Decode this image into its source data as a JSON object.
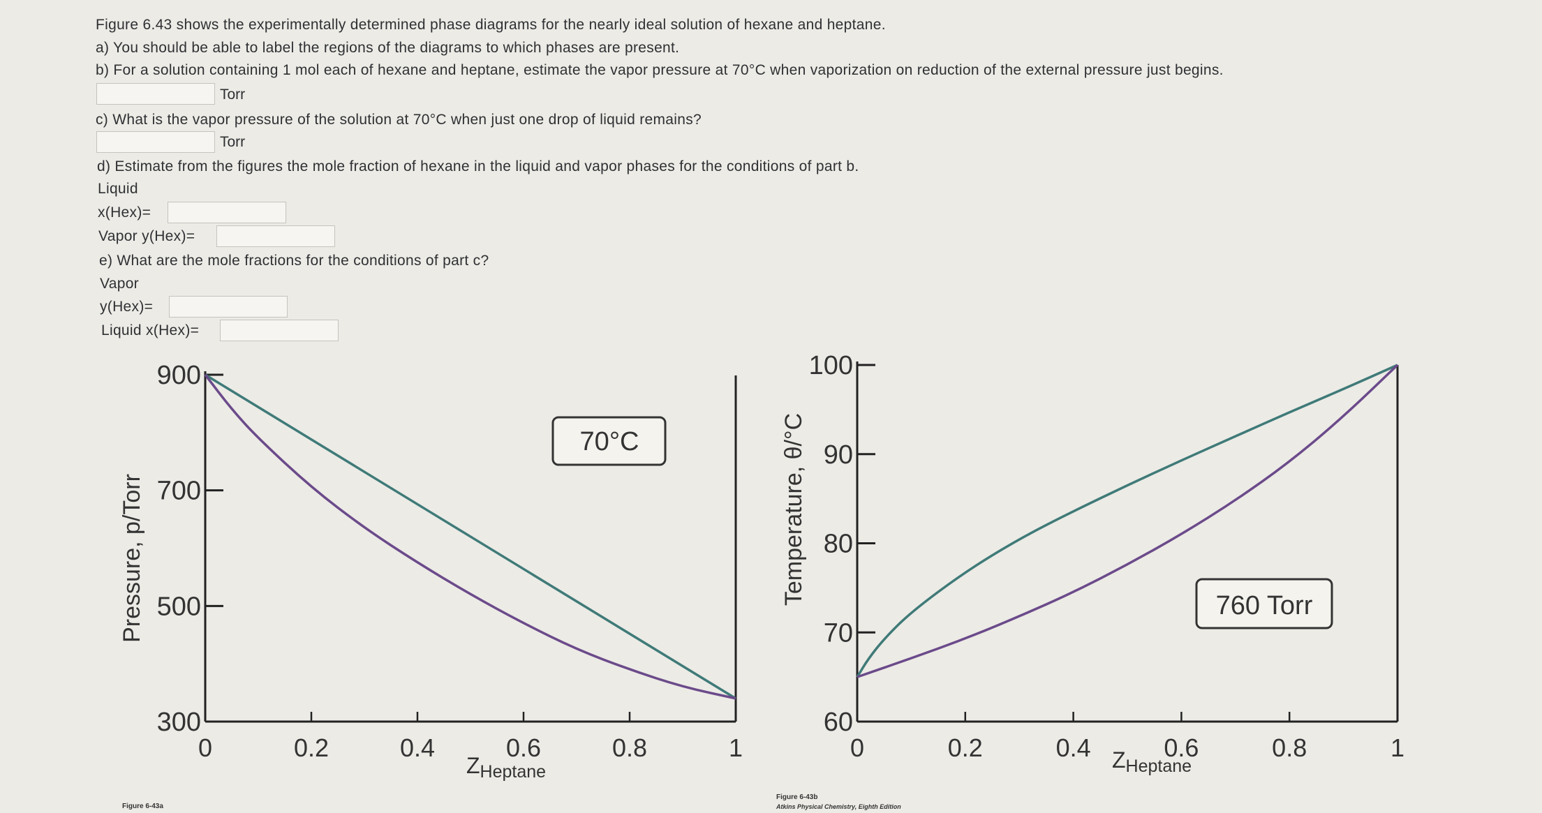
{
  "question": {
    "intro": "Figure 6.43 shows the experimentally determined phase diagrams for the nearly ideal solution of hexane and heptane.",
    "a": "a) You should be able to label the regions of the diagrams to which phases are present.",
    "b": "b) For a solution containing 1 mol each of hexane and heptane, estimate the vapor pressure at 70°C when vaporization on reduction of the external pressure just begins.",
    "b_unit": "Torr",
    "c": "c) What is the vapor pressure of the solution at 70°C when just one drop of liquid remains?",
    "c_unit": "Torr",
    "d": "d) Estimate from the figures the mole fraction of hexane in the liquid and vapor phases for the conditions of part b.",
    "d_liquid": "Liquid",
    "d_xhex": "x(Hex)=",
    "d_vapor": "Vapor y(Hex)=",
    "e": "e) What are the mole fractions for the conditions of part c?",
    "e_vapor": "Vapor",
    "e_yhex": "y(Hex)=",
    "e_liquid": "Liquid x(Hex)=",
    "inputs": {
      "b": "",
      "c": "",
      "d_x": "",
      "d_y": "",
      "e_y": "",
      "e_x": ""
    }
  },
  "chart_data": [
    {
      "type": "line",
      "ylabel": "Pressure, p/Torr",
      "xlabel": "Z",
      "xlabel_sub": "Heptane",
      "annotation": "70°C",
      "caption": "Figure 6-43a",
      "xlim": [
        0,
        1
      ],
      "ylim": [
        300,
        900
      ],
      "x_ticks": [
        "0",
        "0.2",
        "0.4",
        "0.6",
        "0.8",
        "1"
      ],
      "y_ticks": [
        "300",
        "500",
        "700",
        "900"
      ],
      "series": [
        {
          "color": "#3f7a78",
          "x": [
            0,
            1
          ],
          "y": [
            900,
            340
          ]
        },
        {
          "color": "#6b4a8a",
          "x": [
            0,
            0.05,
            0.1,
            0.2,
            0.3,
            0.4,
            0.5,
            0.6,
            0.7,
            0.8,
            0.9,
            1.0
          ],
          "y": [
            900,
            840,
            790,
            705,
            635,
            575,
            520,
            470,
            425,
            390,
            360,
            340
          ]
        }
      ]
    },
    {
      "type": "line",
      "ylabel": "Temperature, θ/°C",
      "xlabel": "Z",
      "xlabel_sub": "Heptane",
      "annotation": "760 Torr",
      "caption": "Figure 6-43b",
      "caption2": "Atkins Physical Chemistry, Eighth Edition",
      "xlim": [
        0,
        1
      ],
      "ylim": [
        60,
        100
      ],
      "x_ticks": [
        "0",
        "0.2",
        "0.4",
        "0.6",
        "0.8",
        "1"
      ],
      "y_ticks": [
        "60",
        "70",
        "80",
        "90",
        "100"
      ],
      "series": [
        {
          "color": "#3f7a78",
          "x": [
            0,
            0.02,
            0.05,
            0.1,
            0.2,
            0.3,
            0.4,
            0.5,
            0.6,
            0.7,
            0.8,
            0.9,
            1.0
          ],
          "y": [
            65,
            67,
            69.3,
            72.3,
            76.8,
            80.5,
            83.6,
            86.5,
            89.3,
            92,
            94.7,
            97.3,
            100
          ]
        },
        {
          "color": "#6b4a8a",
          "x": [
            0,
            0.1,
            0.2,
            0.3,
            0.4,
            0.5,
            0.6,
            0.7,
            0.8,
            0.9,
            1.0
          ],
          "y": [
            65,
            67.1,
            69.3,
            71.8,
            74.5,
            77.6,
            81,
            84.8,
            89.1,
            94.2,
            100
          ]
        }
      ]
    }
  ]
}
